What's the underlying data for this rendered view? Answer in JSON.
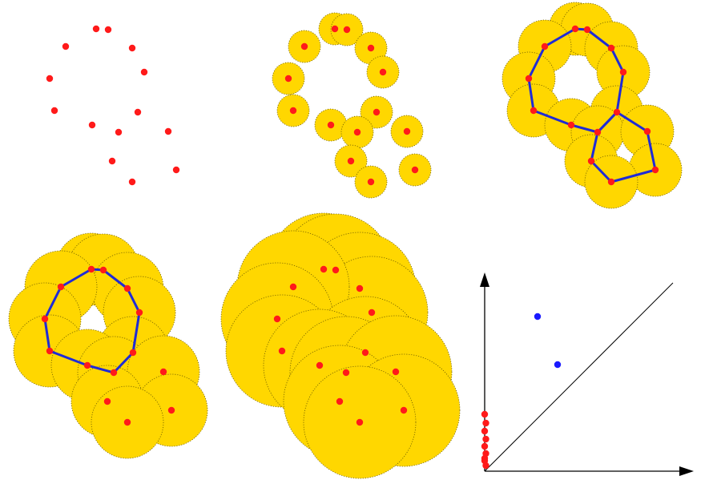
{
  "colors": {
    "background": "#ffffff",
    "ball_fill": "#ffd700",
    "ball_stroke": "#6b5a00",
    "point": "#ff1a1a",
    "loop": "#1f2bd6",
    "persistent_point": "#1a1aff",
    "axis": "#000000"
  },
  "filtration": {
    "stages": [
      {
        "name": "points-only",
        "ball_radius": 0,
        "loops": []
      },
      {
        "name": "small-balls",
        "ball_radius": 20,
        "loops": []
      },
      {
        "name": "two-loops",
        "ball_radius": 33,
        "loops": [
          "large-cycle",
          "small-cycle"
        ]
      },
      {
        "name": "one-loop",
        "ball_radius": 45,
        "loops": [
          "large-cycle"
        ]
      },
      {
        "name": "merged",
        "ball_radius": 70,
        "loops": []
      }
    ]
  },
  "persistence_diagram": {
    "h0_points": 9,
    "h1_points": 2
  }
}
